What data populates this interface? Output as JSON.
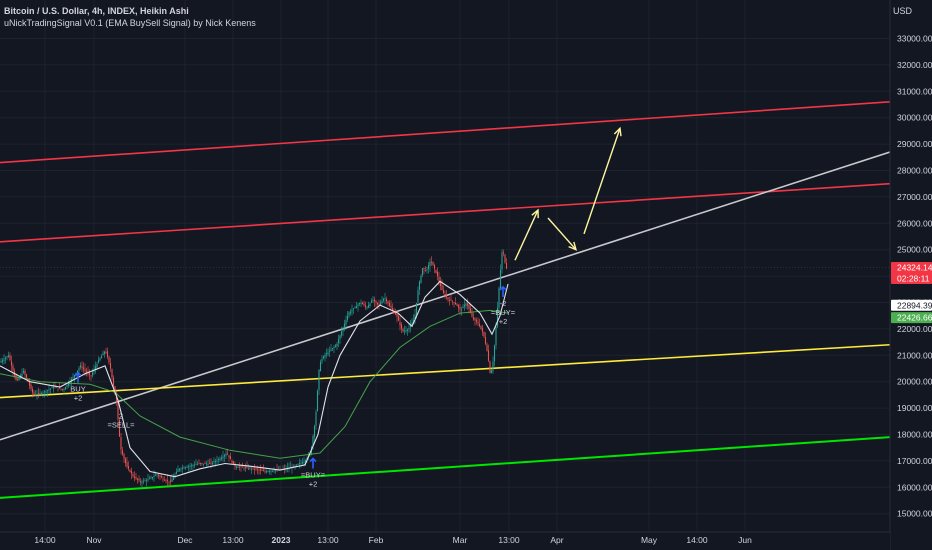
{
  "legend": {
    "line1": "Bitcoin / U.S. Dollar, 4h, INDEX, Heikin Ashi",
    "line2": "uNickTradingSignal V0.1 (EMA BuySell Signal) by Nick Kenens"
  },
  "currency": "USD",
  "chart_data": {
    "type": "candlestick",
    "title": "Bitcoin / U.S. Dollar, 4h, INDEX, Heikin Ashi",
    "y_axis": {
      "label": "USD",
      "range": [
        14600,
        34400
      ],
      "ticks": [
        "15000.00",
        "16000.00",
        "17000.00",
        "18000.00",
        "19000.00",
        "20000.00",
        "21000.00",
        "22000.00",
        "23000.00",
        "24000.00",
        "25000.00",
        "26000.00",
        "27000.00",
        "28000.00",
        "29000.00",
        "30000.00",
        "31000.00",
        "32000.00",
        "33000.00"
      ]
    },
    "x_axis": {
      "ticks": [
        {
          "label": "14:00",
          "bold": false
        },
        {
          "label": "Nov",
          "bold": false
        },
        {
          "label": "Dec",
          "bold": false
        },
        {
          "label": "13:00",
          "bold": false
        },
        {
          "label": "2023",
          "bold": true
        },
        {
          "label": "13:00",
          "bold": false
        },
        {
          "label": "Feb",
          "bold": false
        },
        {
          "label": "Mar",
          "bold": false
        },
        {
          "label": "13:00",
          "bold": false
        },
        {
          "label": "Apr",
          "bold": false
        },
        {
          "label": "May",
          "bold": false
        },
        {
          "label": "14:00",
          "bold": false
        },
        {
          "label": "Jun",
          "bold": false
        }
      ]
    },
    "price_path": [
      [
        0,
        20700
      ],
      [
        10,
        21000
      ],
      [
        18,
        20000
      ],
      [
        25,
        20400
      ],
      [
        35,
        19500
      ],
      [
        45,
        19600
      ],
      [
        55,
        19800
      ],
      [
        65,
        19700
      ],
      [
        75,
        20200
      ],
      [
        82,
        20600
      ],
      [
        92,
        20200
      ],
      [
        100,
        20800
      ],
      [
        107,
        21200
      ],
      [
        112,
        20500
      ],
      [
        118,
        19200
      ],
      [
        122,
        17500
      ],
      [
        128,
        16800
      ],
      [
        135,
        16400
      ],
      [
        142,
        16200
      ],
      [
        150,
        16300
      ],
      [
        158,
        16500
      ],
      [
        165,
        16300
      ],
      [
        172,
        16200
      ],
      [
        180,
        16700
      ],
      [
        190,
        16800
      ],
      [
        200,
        16900
      ],
      [
        212,
        16900
      ],
      [
        222,
        17100
      ],
      [
        228,
        17300
      ],
      [
        236,
        16800
      ],
      [
        246,
        16750
      ],
      [
        256,
        16700
      ],
      [
        266,
        16600
      ],
      [
        276,
        16650
      ],
      [
        286,
        16700
      ],
      [
        296,
        16800
      ],
      [
        306,
        17000
      ],
      [
        312,
        17300
      ],
      [
        317,
        18600
      ],
      [
        321,
        20700
      ],
      [
        326,
        21000
      ],
      [
        332,
        21200
      ],
      [
        338,
        21400
      ],
      [
        344,
        22000
      ],
      [
        350,
        22600
      ],
      [
        356,
        22800
      ],
      [
        362,
        23000
      ],
      [
        368,
        22800
      ],
      [
        374,
        23100
      ],
      [
        380,
        22900
      ],
      [
        386,
        23200
      ],
      [
        392,
        22800
      ],
      [
        398,
        22500
      ],
      [
        404,
        21900
      ],
      [
        410,
        22000
      ],
      [
        416,
        22400
      ],
      [
        420,
        23600
      ],
      [
        424,
        24300
      ],
      [
        428,
        24200
      ],
      [
        432,
        24600
      ],
      [
        438,
        24100
      ],
      [
        444,
        23400
      ],
      [
        450,
        23100
      ],
      [
        456,
        23000
      ],
      [
        462,
        22700
      ],
      [
        468,
        23000
      ],
      [
        474,
        22400
      ],
      [
        480,
        22200
      ],
      [
        485,
        21800
      ],
      [
        489,
        21100
      ],
      [
        492,
        20200
      ],
      [
        495,
        20900
      ],
      [
        498,
        22300
      ],
      [
        501,
        23800
      ],
      [
        504,
        25100
      ],
      [
        506,
        24600
      ],
      [
        508,
        24300
      ]
    ],
    "ema_fast_path": [
      [
        0,
        20600
      ],
      [
        30,
        20000
      ],
      [
        60,
        19800
      ],
      [
        85,
        20300
      ],
      [
        105,
        20600
      ],
      [
        118,
        19300
      ],
      [
        130,
        17500
      ],
      [
        150,
        16600
      ],
      [
        175,
        16400
      ],
      [
        200,
        16700
      ],
      [
        225,
        16900
      ],
      [
        250,
        16800
      ],
      [
        280,
        16650
      ],
      [
        305,
        16850
      ],
      [
        318,
        18000
      ],
      [
        328,
        19800
      ],
      [
        340,
        21000
      ],
      [
        360,
        22300
      ],
      [
        380,
        22900
      ],
      [
        398,
        22600
      ],
      [
        412,
        22100
      ],
      [
        425,
        23200
      ],
      [
        440,
        23800
      ],
      [
        460,
        23300
      ],
      [
        480,
        22600
      ],
      [
        492,
        21800
      ],
      [
        500,
        22500
      ],
      [
        508,
        23700
      ]
    ],
    "ema_slow_path": [
      [
        0,
        20300
      ],
      [
        40,
        20000
      ],
      [
        90,
        19900
      ],
      [
        115,
        19600
      ],
      [
        140,
        18700
      ],
      [
        180,
        17900
      ],
      [
        230,
        17400
      ],
      [
        280,
        17100
      ],
      [
        320,
        17300
      ],
      [
        345,
        18300
      ],
      [
        370,
        20000
      ],
      [
        400,
        21300
      ],
      [
        430,
        22100
      ],
      [
        460,
        22600
      ],
      [
        490,
        22700
      ],
      [
        508,
        22600
      ]
    ],
    "trendlines": [
      {
        "color": "#f23645",
        "from": [
          0,
          28300
        ],
        "to": [
          890,
          30600
        ]
      },
      {
        "color": "#f23645",
        "from": [
          0,
          25300
        ],
        "to": [
          890,
          27500
        ]
      },
      {
        "color": "#c8c9cc",
        "from": [
          0,
          17800
        ],
        "to": [
          890,
          28700
        ]
      },
      {
        "color": "#ffeb3b",
        "from": [
          0,
          19400
        ],
        "to": [
          890,
          21400
        ]
      },
      {
        "color": "#00e600",
        "from": [
          0,
          15600
        ],
        "to": [
          890,
          17900
        ]
      }
    ],
    "projection_arrows": [
      {
        "from": [
          515,
          24600
        ],
        "to": [
          538,
          26500
        ]
      },
      {
        "from": [
          548,
          26200
        ],
        "to": [
          576,
          25000
        ]
      },
      {
        "from": [
          584,
          25600
        ],
        "to": [
          620,
          29600
        ]
      }
    ],
    "signals": [
      {
        "kind": "buy",
        "x": 78,
        "price": 20150,
        "lines": [
          "BUY",
          "+2"
        ]
      },
      {
        "kind": "sell",
        "x": 121,
        "price": 18600,
        "lines": [
          "2",
          "=SELL="
        ]
      },
      {
        "kind": "buy",
        "x": 313,
        "price": 16900,
        "lines": [
          "=BUY=",
          "+2"
        ]
      },
      {
        "kind": "buy",
        "x": 503,
        "price": 23400,
        "lines": [
          "-2",
          "=BUY=",
          "+2"
        ]
      }
    ],
    "price_tags": [
      {
        "value": "24324.14",
        "sub": "02:28:11",
        "price": 24324,
        "bg": "#f23645",
        "fg": "#ffffff"
      },
      {
        "value": "22894.39",
        "price": 22894,
        "bg": "#ffffff",
        "fg": "#131722"
      },
      {
        "value": "22426.66",
        "price": 22426,
        "bg": "#4caf50",
        "fg": "#ffffff"
      }
    ],
    "colors": {
      "background": "#131722",
      "up": "#26a69a",
      "down": "#ef5350",
      "ema_fast": "#e0e3eb",
      "ema_slow": "#4caf50",
      "arrow": "#fff59d",
      "grid": "#1e222d"
    }
  }
}
